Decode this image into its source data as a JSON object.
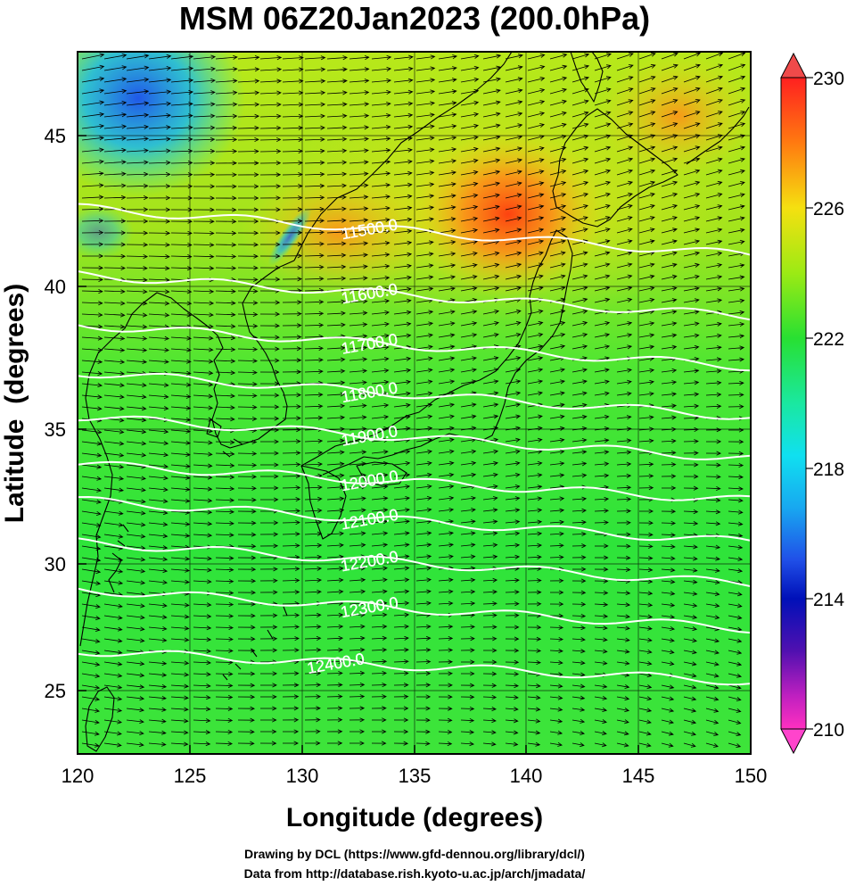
{
  "title": "MSM 06Z20Jan2023 (200.0hPa)",
  "xlabel": "Longitude (degrees)",
  "ylabel": "Latitude  (degrees)",
  "credit_line1": "Drawing by DCL (https://www.gfd-dennou.org/library/dcl/)",
  "credit_line2": "Data from http://database.rish.kyoto-u.ac.jp/arch/jmadata/",
  "chart_data": {
    "type": "heatmap",
    "x_ticks": [
      "120",
      "125",
      "130",
      "135",
      "140",
      "145",
      "150"
    ],
    "y_ticks": [
      "25",
      "30",
      "35",
      "40",
      "45"
    ],
    "xlim": [
      120,
      150
    ],
    "ylim": [
      22.4,
      47.6
    ],
    "colorbar": {
      "ticks": [
        "230",
        "226",
        "222",
        "218",
        "214",
        "210"
      ],
      "range": [
        210,
        230
      ],
      "top_arrow_color": "#f04040",
      "bottom_arrow_color": "#ff44cc"
    },
    "contours": [
      {
        "label": "11500.0",
        "lat_west": 42.0,
        "lat_east": 40.3
      },
      {
        "label": "11600.0",
        "lat_west": 39.6,
        "lat_east": 38.1
      },
      {
        "label": "11700.0",
        "lat_west": 37.8,
        "lat_east": 36.3
      },
      {
        "label": "11800.0",
        "lat_west": 36.1,
        "lat_east": 34.5
      },
      {
        "label": "11900.0",
        "lat_west": 34.5,
        "lat_east": 33.0
      },
      {
        "label": "12000.0",
        "lat_west": 32.8,
        "lat_east": 31.5
      },
      {
        "label": "12100.0",
        "lat_west": 31.5,
        "lat_east": 30.0
      },
      {
        "label": "12200.0",
        "lat_west": 30.0,
        "lat_east": 28.5
      },
      {
        "label": "12300.0",
        "lat_west": 28.3,
        "lat_east": 26.9
      },
      {
        "label": "12400.0",
        "lat_west": 26.1,
        "lat_east": 25.0
      }
    ]
  }
}
